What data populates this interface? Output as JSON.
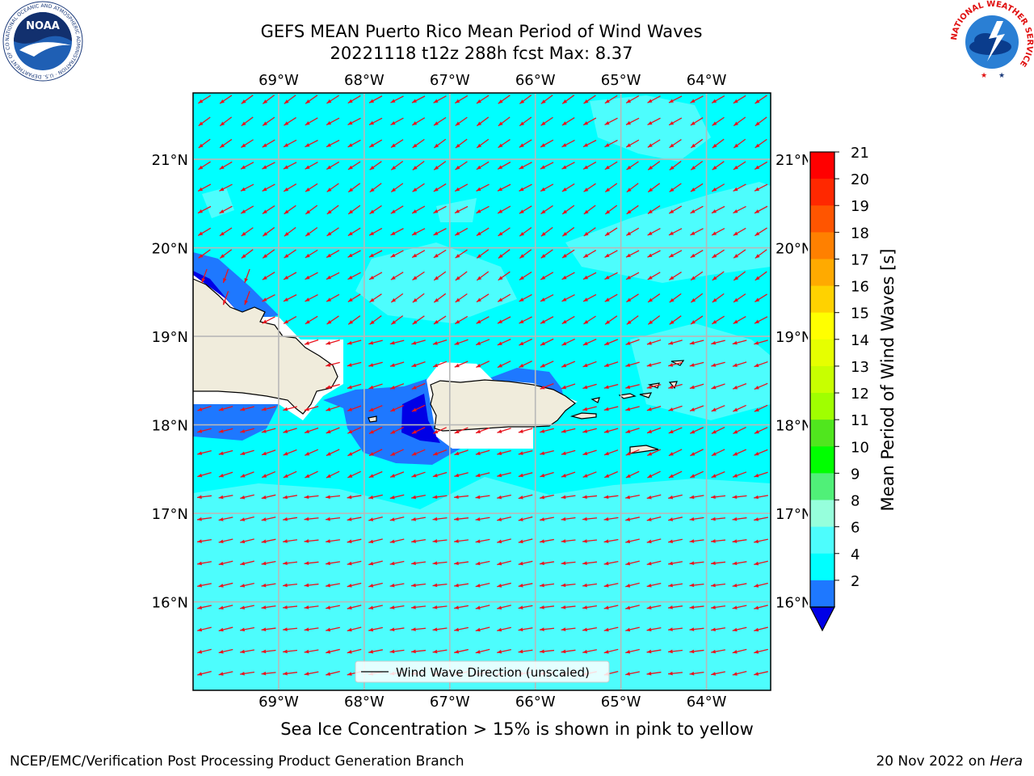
{
  "header": {
    "title_line1": "GEFS MEAN Puerto Rico Mean Period of Wind Waves",
    "title_line2": "20221118 t12z 288h fcst   Max: 8.37",
    "noaa_logo_text": "NOAA",
    "noaa_seal_text": "NATIONAL OCEANIC AND ATMOSPHERIC ADMINISTRATION · U.S. DEPARTMENT OF COMMERCE",
    "nws_seal_text": "NATIONAL WEATHER SERVICE"
  },
  "map": {
    "lon_labels": [
      "69°W",
      "68°W",
      "67°W",
      "66°W",
      "65°W",
      "64°W"
    ],
    "lat_labels": [
      "21°N",
      "20°N",
      "19°N",
      "18°N",
      "17°N",
      "16°N"
    ],
    "lon_values": [
      -69,
      -68,
      -67,
      -66,
      -65,
      -64
    ],
    "lat_values": [
      21,
      20,
      19,
      18,
      17,
      16
    ],
    "extent": {
      "lon_min": -70.0,
      "lon_max": -63.25,
      "lat_min": 15.0,
      "lat_max": 21.75
    },
    "legend_label": "Wind Wave Direction (unscaled)",
    "colors": {
      "ocean_cyan": "#00ffff",
      "ocean_light": "#4dfdfd",
      "mid_blue": "#1e78ff",
      "dark_blue": "#0000e6",
      "land": "#f0ecdc",
      "arrow": "#e8141e",
      "grid": "#b8b8b8"
    }
  },
  "colorbar": {
    "label": "Mean Period of Wind Waves [s]",
    "tick_labels": [
      "21",
      "20",
      "19",
      "18",
      "17",
      "16",
      "15",
      "14",
      "13",
      "12",
      "11",
      "10",
      "9",
      "8",
      "6",
      "4",
      "2"
    ],
    "bands": [
      {
        "color": "#ff0000"
      },
      {
        "color": "#ff2800"
      },
      {
        "color": "#ff5500"
      },
      {
        "color": "#ff8000"
      },
      {
        "color": "#ffaa00"
      },
      {
        "color": "#ffd200"
      },
      {
        "color": "#ffff00"
      },
      {
        "color": "#e6ff00"
      },
      {
        "color": "#c8ff00"
      },
      {
        "color": "#a0ff00"
      },
      {
        "color": "#50e61e"
      },
      {
        "color": "#00ff00"
      },
      {
        "color": "#50f078"
      },
      {
        "color": "#96ffdc"
      },
      {
        "color": "#4dfdfd"
      },
      {
        "color": "#00ffff"
      },
      {
        "color": "#1e78ff"
      }
    ],
    "extend_color": "#0000e6"
  },
  "footer": {
    "sea_ice_note": "Sea Ice Concentration > 15% is shown in pink to yellow",
    "credit": "NCEP/EMC/Verification Post Processing Product Generation Branch",
    "date_prefix": "20 Nov 2022 on ",
    "date_host": "Hera"
  }
}
